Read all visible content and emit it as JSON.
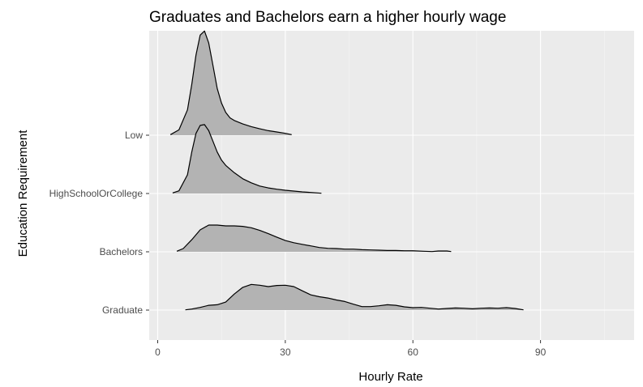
{
  "chart_data": {
    "type": "ridgeline",
    "title": "Graduates and Bachelors earn a higher hourly wage",
    "xlabel": "Hourly Rate",
    "ylabel": "Education Requirement",
    "xlim": [
      -2,
      112
    ],
    "x_ticks": [
      0,
      30,
      60,
      90
    ],
    "categories": [
      "Graduate",
      "Bachelors",
      "HighSchoolOrCollege",
      "Low"
    ],
    "fill_color": "#b3b3b3",
    "panel_color": "#ebebeb",
    "grid": true,
    "series": [
      {
        "name": "Graduate",
        "baseline_index": 0,
        "x": [
          6.5,
          8,
          10,
          12,
          14,
          16,
          18,
          20,
          22,
          24,
          26,
          28,
          30,
          32,
          34,
          36,
          38,
          40,
          42,
          44,
          46,
          48,
          50,
          52,
          54,
          56,
          58,
          60,
          62,
          64,
          66,
          68,
          70,
          72,
          74,
          76,
          78,
          80,
          82,
          84,
          86
        ],
        "y": [
          0.01,
          0.04,
          0.1,
          0.18,
          0.2,
          0.3,
          0.6,
          0.85,
          0.96,
          0.93,
          0.88,
          0.92,
          0.93,
          0.88,
          0.72,
          0.57,
          0.5,
          0.45,
          0.38,
          0.32,
          0.22,
          0.13,
          0.13,
          0.16,
          0.2,
          0.18,
          0.12,
          0.09,
          0.1,
          0.07,
          0.04,
          0.06,
          0.08,
          0.07,
          0.05,
          0.07,
          0.08,
          0.07,
          0.09,
          0.06,
          0.01
        ]
      },
      {
        "name": "Bachelors",
        "baseline_index": 1,
        "x": [
          4.5,
          6,
          8,
          10,
          12,
          14,
          16,
          18,
          20,
          22,
          24,
          26,
          28,
          30,
          32,
          34,
          36,
          38,
          40,
          42,
          44,
          46,
          48,
          50,
          52,
          54,
          56,
          58,
          60,
          62.5,
          64.5,
          66,
          68,
          69
        ],
        "y": [
          0.02,
          0.12,
          0.45,
          0.82,
          1.0,
          1.0,
          0.97,
          0.97,
          0.95,
          0.9,
          0.8,
          0.68,
          0.55,
          0.42,
          0.34,
          0.28,
          0.22,
          0.16,
          0.13,
          0.12,
          0.1,
          0.1,
          0.08,
          0.07,
          0.06,
          0.05,
          0.05,
          0.04,
          0.04,
          0.02,
          0.01,
          0.03,
          0.03,
          0.01
        ]
      },
      {
        "name": "HighSchoolOrCollege",
        "baseline_index": 2,
        "x": [
          3.5,
          5,
          7,
          8,
          9,
          10,
          11,
          12,
          13,
          14,
          15,
          16,
          18,
          20,
          22,
          24,
          26,
          28,
          30,
          32,
          34,
          36,
          38.5
        ],
        "y": [
          0.02,
          0.1,
          0.7,
          1.55,
          2.25,
          2.55,
          2.58,
          2.35,
          1.95,
          1.55,
          1.25,
          1.05,
          0.78,
          0.55,
          0.4,
          0.28,
          0.21,
          0.16,
          0.12,
          0.09,
          0.06,
          0.04,
          0.01
        ]
      },
      {
        "name": "Low",
        "baseline_index": 3,
        "x": [
          3,
          5,
          7,
          8,
          9,
          10,
          11,
          12,
          13,
          14,
          15,
          16,
          17,
          18,
          20,
          22,
          24,
          26,
          28,
          30,
          31.5
        ],
        "y": [
          0.02,
          0.2,
          0.95,
          1.9,
          3.0,
          3.75,
          3.9,
          3.45,
          2.6,
          1.75,
          1.2,
          0.85,
          0.65,
          0.55,
          0.42,
          0.32,
          0.24,
          0.17,
          0.12,
          0.07,
          0.02
        ]
      }
    ]
  }
}
